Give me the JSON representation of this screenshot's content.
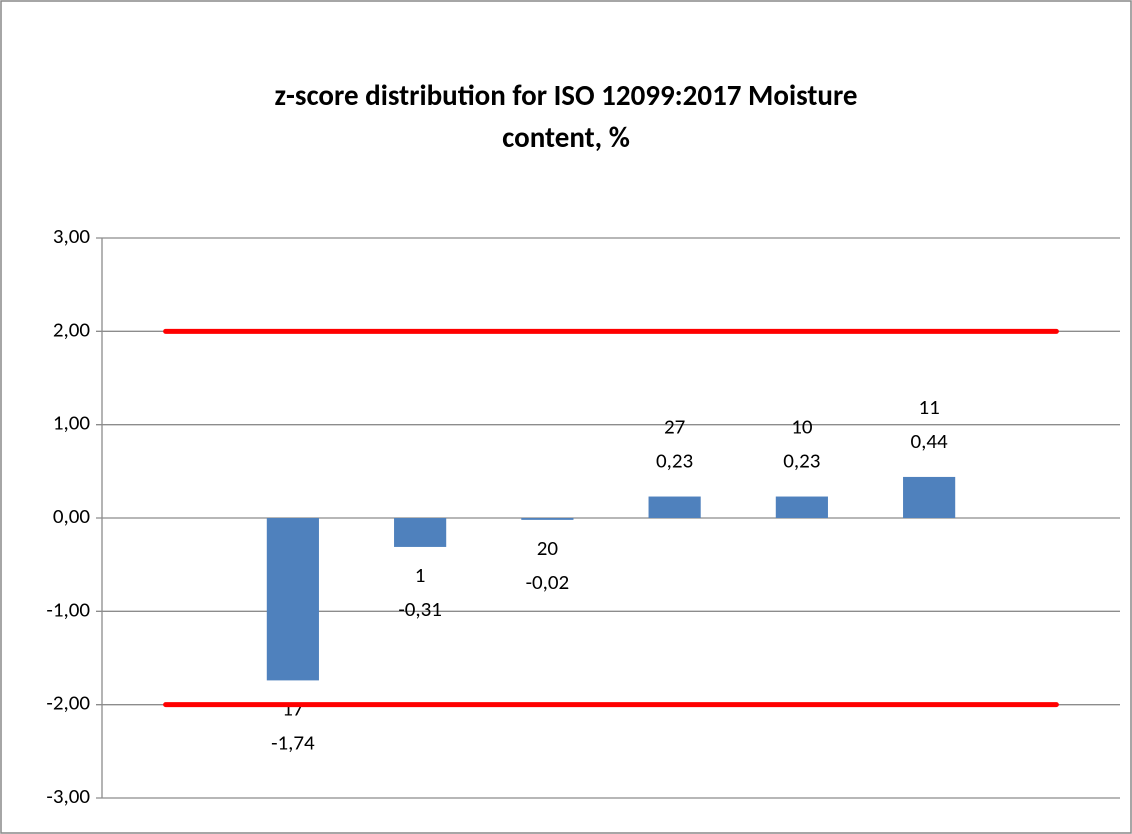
{
  "chart_data": {
    "type": "bar",
    "title": [
      "z-score distribution for ISO 12099:2017 Moisture",
      "content, %"
    ],
    "categories": [
      null,
      "17",
      "1",
      "20",
      "27",
      "10",
      "11",
      null
    ],
    "values": [
      null,
      -1.74,
      -0.31,
      -0.02,
      0.23,
      0.23,
      0.44,
      null
    ],
    "value_labels": [
      null,
      "-1,74",
      "-0,31",
      "-0,02",
      "0,23",
      "0,23",
      "0,44",
      null
    ],
    "color": "#4f81bd",
    "ylim": [
      -3,
      3
    ],
    "yticks": [
      {
        "value": 3,
        "label": "3,00"
      },
      {
        "value": 2,
        "label": "2,00"
      },
      {
        "value": 1,
        "label": "1,00"
      },
      {
        "value": 0,
        "label": "0,00"
      },
      {
        "value": -1,
        "label": "-1,00"
      },
      {
        "value": -2,
        "label": "-2,00"
      },
      {
        "value": -3,
        "label": "-3,00"
      }
    ],
    "grid": true,
    "limit_lines": [
      {
        "value": 2,
        "color": "#ff0000"
      },
      {
        "value": -2,
        "color": "#ff0000"
      }
    ]
  }
}
